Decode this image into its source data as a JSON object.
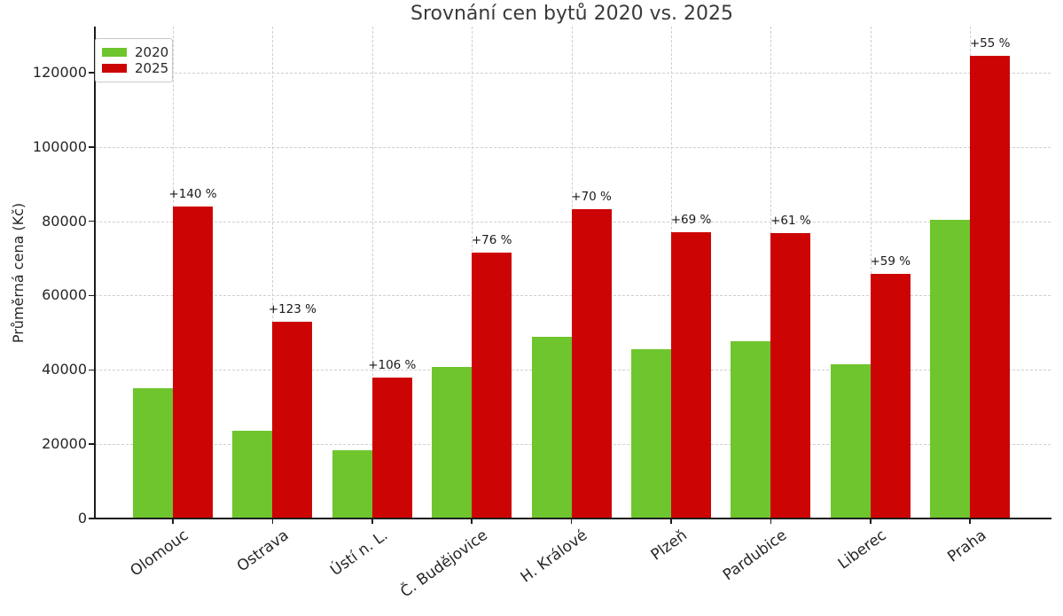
{
  "chart_data": {
    "type": "bar",
    "title": "Srovnání cen bytů 2020 vs. 2025",
    "xlabel": "",
    "ylabel": "Průměrná cena (Kč)",
    "categories": [
      "Olomouc",
      "Ostrava",
      "Ústí n. L.",
      "Č. Budějovice",
      "H. Králové",
      "Plzeň",
      "Pardubice",
      "Liberec",
      "Praha"
    ],
    "series": [
      {
        "name": "2020",
        "color": "#6ec52d",
        "values": [
          35000,
          23700,
          18400,
          40700,
          49000,
          45600,
          47700,
          41400,
          80300
        ]
      },
      {
        "name": "2025",
        "color": "#cd0404",
        "values": [
          84000,
          52900,
          37900,
          71600,
          83300,
          77100,
          76800,
          65800,
          124500
        ]
      }
    ],
    "bar_annotations": [
      "+140 %",
      "+123 %",
      "+106 %",
      "+76 %",
      "+70 %",
      "+69 %",
      "+61 %",
      "+59 %",
      "+55 %"
    ],
    "yticks": [
      0,
      20000,
      40000,
      60000,
      80000,
      100000,
      120000
    ],
    "ytick_labels": [
      "0",
      "20000",
      "40000",
      "60000",
      "80000",
      "100000",
      "120000"
    ],
    "ylim": [
      0,
      132400
    ],
    "grid": true,
    "grid_style": "dashed",
    "legend_position": "upper left",
    "legend_entries": [
      "2020",
      "2025"
    ]
  }
}
